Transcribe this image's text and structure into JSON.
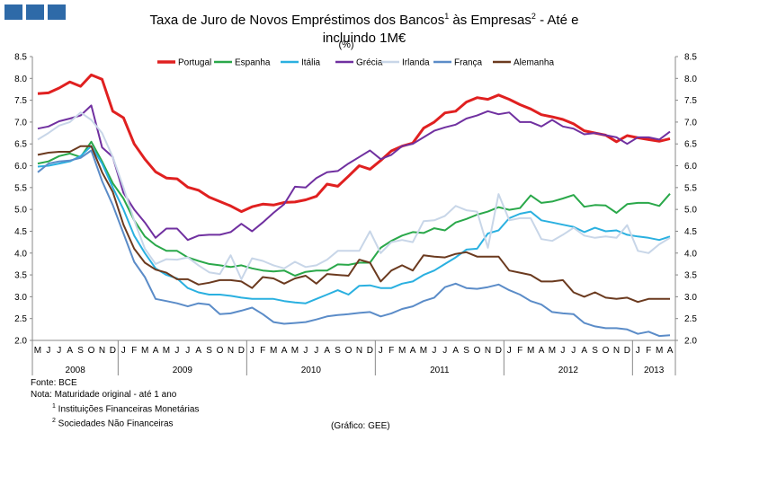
{
  "header": {
    "title_line1": "Taxa de Juro de Novos Empréstimos  dos Bancos",
    "sup1": "1",
    "title_mid": " às Empresas",
    "sup2": "2",
    "title_end": " - Até e",
    "title_line2": "incluindo  1M€",
    "unit": "(%)"
  },
  "footer": {
    "source": "Fonte: BCE",
    "note": "Nota: Maturidade original - até 1 ano",
    "note1_sup": "1",
    "note1": " Instituições Financeiras Monetárias",
    "note2_sup": "2",
    "note2": " Sociedades Não Financeiras",
    "credit": "(Gráfico:  GEE)"
  },
  "chart_data": {
    "type": "line",
    "ylim": [
      2.0,
      8.5
    ],
    "yticks": [
      "2.0",
      "2.5",
      "3.0",
      "3.5",
      "4.0",
      "4.5",
      "5.0",
      "5.5",
      "6.0",
      "6.5",
      "7.0",
      "7.5",
      "8.0",
      "8.5"
    ],
    "months": [
      "M",
      "J",
      "J",
      "A",
      "S",
      "O",
      "N",
      "D",
      "J",
      "F",
      "M",
      "A",
      "M",
      "J",
      "J",
      "A",
      "S",
      "O",
      "N",
      "D",
      "J",
      "F",
      "M",
      "A",
      "M",
      "J",
      "J",
      "A",
      "S",
      "O",
      "N",
      "D",
      "J",
      "F",
      "M",
      "A",
      "M",
      "J",
      "J",
      "A",
      "S",
      "O",
      "N",
      "D",
      "J",
      "F",
      "M",
      "A",
      "M",
      "J",
      "J",
      "A",
      "S",
      "O",
      "N",
      "D",
      "J",
      "F",
      "M",
      "A"
    ],
    "years": [
      {
        "label": "2008",
        "start": 0,
        "end": 8
      },
      {
        "label": "2009",
        "start": 8,
        "end": 20
      },
      {
        "label": "2010",
        "start": 20,
        "end": 32
      },
      {
        "label": "2011",
        "start": 32,
        "end": 44
      },
      {
        "label": "2012",
        "start": 44,
        "end": 56
      },
      {
        "label": "2013",
        "start": 56,
        "end": 60
      }
    ],
    "series": [
      {
        "name": "Portugal",
        "color": "#e02020",
        "width": 3,
        "values": [
          7.65,
          7.67,
          7.78,
          7.92,
          7.82,
          8.08,
          7.98,
          7.25,
          7.1,
          6.5,
          6.15,
          5.86,
          5.72,
          5.7,
          5.51,
          5.44,
          5.28,
          5.18,
          5.08,
          4.95,
          5.06,
          5.12,
          5.1,
          5.16,
          5.17,
          5.22,
          5.3,
          5.58,
          5.53,
          5.76,
          6.0,
          5.92,
          6.12,
          6.34,
          6.45,
          6.52,
          6.86,
          7.0,
          7.21,
          7.25,
          7.46,
          7.56,
          7.52,
          7.62,
          7.52,
          7.4,
          7.3,
          7.17,
          7.12,
          7.06,
          6.96,
          6.8,
          6.75,
          6.7,
          6.55,
          6.69,
          6.64,
          6.6,
          6.56,
          6.62
        ]
      },
      {
        "name": "Espanha",
        "color": "#2aa84a",
        "width": 2,
        "values": [
          6.05,
          6.1,
          6.22,
          6.28,
          6.2,
          6.55,
          6.1,
          5.6,
          5.25,
          4.75,
          4.38,
          4.18,
          4.05,
          4.05,
          3.9,
          3.82,
          3.75,
          3.72,
          3.68,
          3.72,
          3.65,
          3.6,
          3.58,
          3.6,
          3.48,
          3.57,
          3.6,
          3.6,
          3.74,
          3.73,
          3.78,
          3.78,
          4.12,
          4.28,
          4.4,
          4.48,
          4.46,
          4.57,
          4.52,
          4.7,
          4.78,
          4.88,
          4.95,
          5.05,
          4.99,
          5.03,
          5.32,
          5.15,
          5.18,
          5.25,
          5.33,
          5.06,
          5.1,
          5.09,
          4.92,
          5.12,
          5.15,
          5.15,
          5.08,
          5.36
        ]
      },
      {
        "name": "Itália",
        "color": "#2ab0e0",
        "width": 2,
        "values": [
          5.98,
          6.0,
          6.05,
          6.1,
          6.22,
          6.45,
          6.05,
          5.5,
          5.0,
          4.4,
          4.0,
          3.65,
          3.5,
          3.42,
          3.2,
          3.1,
          3.05,
          3.05,
          3.02,
          2.98,
          2.95,
          2.95,
          2.95,
          2.9,
          2.87,
          2.85,
          2.95,
          3.05,
          3.15,
          3.05,
          3.25,
          3.26,
          3.2,
          3.2,
          3.3,
          3.35,
          3.5,
          3.6,
          3.75,
          3.9,
          4.08,
          4.1,
          4.45,
          4.52,
          4.8,
          4.9,
          4.95,
          4.75,
          4.7,
          4.65,
          4.6,
          4.48,
          4.58,
          4.5,
          4.52,
          4.42,
          4.38,
          4.35,
          4.3,
          4.38
        ]
      },
      {
        "name": "Grécia",
        "color": "#7030a0",
        "width": 2,
        "values": [
          6.85,
          6.9,
          7.02,
          7.08,
          7.15,
          7.38,
          6.42,
          6.2,
          5.38,
          5.0,
          4.7,
          4.35,
          4.56,
          4.56,
          4.3,
          4.4,
          4.42,
          4.42,
          4.48,
          4.67,
          4.5,
          4.7,
          4.92,
          5.12,
          5.52,
          5.5,
          5.72,
          5.85,
          5.88,
          6.05,
          6.2,
          6.35,
          6.15,
          6.25,
          6.45,
          6.5,
          6.65,
          6.8,
          6.88,
          6.94,
          7.08,
          7.15,
          7.25,
          7.18,
          7.22,
          7.0,
          7.0,
          6.9,
          7.05,
          6.9,
          6.85,
          6.72,
          6.75,
          6.7,
          6.65,
          6.5,
          6.65,
          6.65,
          6.6,
          6.78
        ]
      },
      {
        "name": "Irlanda",
        "color": "#c8d6e8",
        "width": 2,
        "values": [
          6.6,
          6.75,
          6.92,
          7.0,
          7.22,
          7.05,
          6.75,
          6.2,
          5.5,
          4.75,
          4.1,
          3.75,
          3.86,
          3.85,
          3.9,
          3.72,
          3.56,
          3.52,
          3.95,
          3.4,
          3.88,
          3.82,
          3.72,
          3.65,
          3.8,
          3.68,
          3.72,
          3.85,
          4.05,
          4.05,
          4.05,
          4.5,
          4.0,
          4.25,
          4.3,
          4.25,
          4.73,
          4.75,
          4.85,
          5.08,
          4.98,
          4.95,
          4.12,
          5.35,
          4.75,
          4.8,
          4.8,
          4.32,
          4.28,
          4.42,
          4.58,
          4.4,
          4.35,
          4.38,
          4.35,
          4.64,
          4.05,
          4.0,
          4.2,
          4.35
        ]
      },
      {
        "name": "França",
        "color": "#5b8cc8",
        "width": 2,
        "values": [
          5.85,
          6.05,
          6.1,
          6.12,
          6.18,
          6.35,
          5.65,
          5.1,
          4.45,
          3.8,
          3.45,
          2.95,
          2.9,
          2.85,
          2.78,
          2.85,
          2.82,
          2.6,
          2.62,
          2.68,
          2.75,
          2.6,
          2.42,
          2.38,
          2.4,
          2.42,
          2.48,
          2.55,
          2.58,
          2.6,
          2.63,
          2.65,
          2.55,
          2.62,
          2.72,
          2.78,
          2.9,
          2.98,
          3.22,
          3.3,
          3.2,
          3.18,
          3.22,
          3.28,
          3.15,
          3.05,
          2.9,
          2.82,
          2.65,
          2.62,
          2.6,
          2.4,
          2.32,
          2.28,
          2.28,
          2.25,
          2.15,
          2.2,
          2.1,
          2.12
        ]
      },
      {
        "name": "Alemanha",
        "color": "#6b3a1f",
        "width": 2,
        "values": [
          6.25,
          6.3,
          6.32,
          6.32,
          6.45,
          6.45,
          5.85,
          5.4,
          4.65,
          4.1,
          3.78,
          3.62,
          3.55,
          3.4,
          3.4,
          3.28,
          3.32,
          3.38,
          3.38,
          3.35,
          3.2,
          3.45,
          3.42,
          3.3,
          3.42,
          3.48,
          3.3,
          3.52,
          3.5,
          3.48,
          3.85,
          3.78,
          3.35,
          3.6,
          3.72,
          3.6,
          3.95,
          3.92,
          3.9,
          3.98,
          4.02,
          3.92,
          3.92,
          3.92,
          3.6,
          3.55,
          3.5,
          3.35,
          3.35,
          3.38,
          3.1,
          3.0,
          3.1,
          2.98,
          2.95,
          2.98,
          2.88,
          2.95,
          2.95,
          2.95
        ]
      }
    ]
  }
}
